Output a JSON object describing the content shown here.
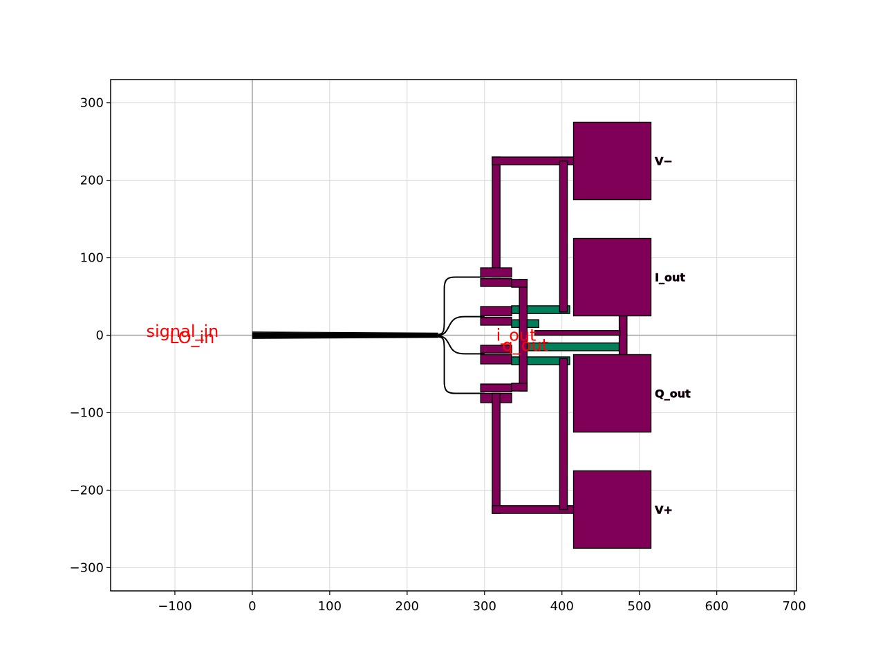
{
  "colors": {
    "metal": "#800057",
    "via_layer": "#00805a",
    "outline": "#000000",
    "port_label": "#ff0000",
    "grid": "#d9d9d9",
    "axis_line": "#a6a6a6"
  },
  "axes": {
    "xlim": [
      -183,
      703
    ],
    "ylim": [
      -330,
      330
    ],
    "x_ticks": [
      -100,
      0,
      100,
      200,
      300,
      400,
      500,
      600,
      700
    ],
    "x_tick_labels": [
      "−100",
      "0",
      "100",
      "200",
      "300",
      "400",
      "500",
      "600",
      "700"
    ],
    "y_ticks": [
      300,
      200,
      100,
      0,
      -100,
      -200,
      -300
    ],
    "y_tick_labels": [
      "300",
      "200",
      "100",
      "0",
      "−100",
      "−200",
      "−300"
    ],
    "grid": true,
    "zero_lines": true
  },
  "layout_geometry": {
    "pads": [
      {
        "label": "V−",
        "x0": 415,
        "x1": 515,
        "y0": 175,
        "y1": 275
      },
      {
        "label": "I_out",
        "x0": 415,
        "x1": 515,
        "y0": 25,
        "y1": 125
      },
      {
        "label": "Q_out",
        "x0": 415,
        "x1": 515,
        "y0": -125,
        "y1": -25
      },
      {
        "label": "V+",
        "x0": 415,
        "x1": 515,
        "y0": -275,
        "y1": -175
      }
    ],
    "metal_rects": [
      [
        310,
        320,
        75,
        230
      ],
      [
        310,
        465,
        220,
        230
      ],
      [
        397,
        407,
        30,
        225
      ],
      [
        295,
        335,
        75,
        87
      ],
      [
        295,
        335,
        63,
        73
      ],
      [
        295,
        335,
        25,
        37
      ],
      [
        295,
        335,
        13,
        23
      ],
      [
        295,
        335,
        -23,
        -13
      ],
      [
        295,
        335,
        -37,
        -25
      ],
      [
        295,
        335,
        -73,
        -63
      ],
      [
        295,
        335,
        -87,
        -75
      ],
      [
        310,
        320,
        -230,
        -75
      ],
      [
        310,
        465,
        -230,
        -220
      ],
      [
        397,
        407,
        -225,
        -30
      ],
      [
        345,
        355,
        -72,
        72
      ],
      [
        335,
        355,
        62,
        72
      ],
      [
        335,
        355,
        -72,
        -62
      ],
      [
        474,
        484,
        -80,
        80
      ],
      [
        465,
        484,
        70,
        80
      ],
      [
        465,
        484,
        -80,
        -70
      ],
      [
        365,
        475,
        0,
        6
      ]
    ],
    "via_rects": [
      [
        335,
        410,
        28,
        38
      ],
      [
        335,
        370,
        10,
        20
      ],
      [
        355,
        474,
        -20,
        -10
      ],
      [
        335,
        410,
        -38,
        -28
      ]
    ],
    "waveguides": [
      "M 0 1 L 240 1 C 248 1 248 8 248 20 L 248 60 C 248 72 252 75 262 75 L 300 75",
      "M 0 0 L 240 0 C 250 0 252 8 256 15 C 260 22 265 24 275 24 L 300 24",
      "M 0 -1 L 240 -1 C 250 -1 252 -8 256 -15 C 260 -22 265 -24 275 -24 L 300 -24",
      "M 0 -2 L 240 -2 C 248 -2 248 -8 248 -20 L 248 -60 C 248 -72 252 -75 262 -75 L 300 -75"
    ]
  },
  "pad_labels": [
    {
      "text": "V−",
      "x": 520,
      "y": 225
    },
    {
      "text": "I_out",
      "x": 520,
      "y": 75
    },
    {
      "text": "Q_out",
      "x": 520,
      "y": -75
    },
    {
      "text": "V+",
      "x": 520,
      "y": -225
    }
  ],
  "port_labels": [
    {
      "text": "signal_in",
      "x": -137,
      "y": 5
    },
    {
      "text": "LO_in",
      "x": -107,
      "y": -3
    },
    {
      "text": "i_out",
      "x": 315,
      "y": 0
    },
    {
      "text": "q_out",
      "x": 323,
      "y": -13
    }
  ]
}
